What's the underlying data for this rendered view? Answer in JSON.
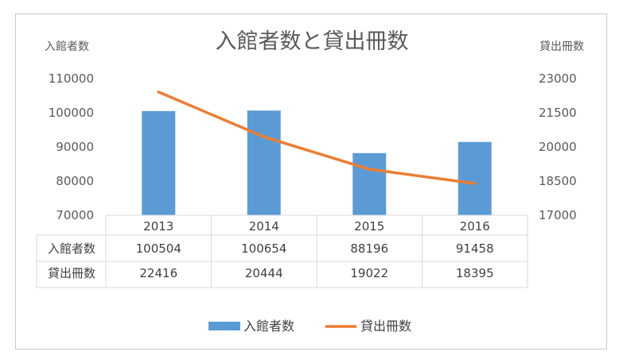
{
  "chart_data": {
    "type": "bar",
    "title": "入館者数と貸出冊数",
    "ylabel": "入館者数",
    "y2label": "貸出冊数",
    "categories": [
      "2013",
      "2014",
      "2015",
      "2016"
    ],
    "ylim": [
      70000,
      110000
    ],
    "y_ticks": [
      "70000",
      "80000",
      "90000",
      "100000",
      "110000"
    ],
    "y2lim": [
      17000,
      23000
    ],
    "y2_ticks": [
      "17000",
      "18500",
      "20000",
      "21500",
      "23000"
    ],
    "series": [
      {
        "name": "入館者数",
        "kind": "bar",
        "axis": "left",
        "color": "#5B9BD5",
        "values": [
          100504,
          100654,
          88196,
          91458
        ]
      },
      {
        "name": "貸出冊数",
        "kind": "line",
        "axis": "right",
        "color": "#ED7D31",
        "values": [
          22416,
          20444,
          19022,
          18395
        ]
      }
    ],
    "data_table": true,
    "legend_position": "bottom",
    "grid": false
  }
}
